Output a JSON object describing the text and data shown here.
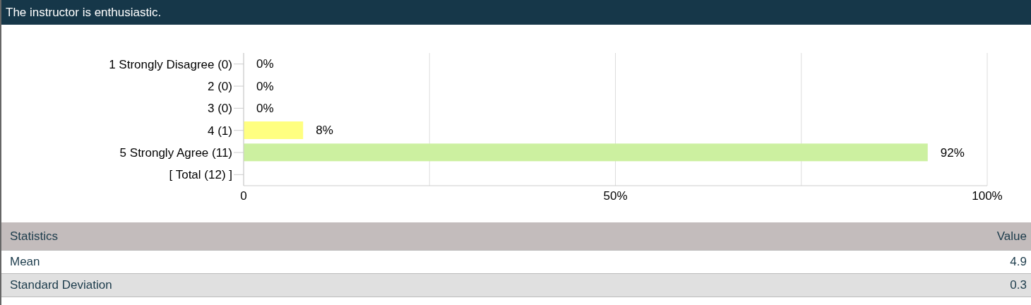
{
  "chart_data": {
    "type": "bar",
    "orientation": "horizontal",
    "title": "The instructor is enthusiastic.",
    "categories": [
      "1 Strongly Disagree (0)",
      "2 (0)",
      "3 (0)",
      "4 (1)",
      "5 Strongly Agree (11)",
      "[ Total (12) ]"
    ],
    "values": [
      0,
      0,
      0,
      8,
      92,
      null
    ],
    "colors": [
      "#ffff80",
      "#ffff80",
      "#ffff80",
      "#ffff80",
      "#ccf0a0",
      null
    ],
    "value_labels": [
      "0%",
      "0%",
      "0%",
      "8%",
      "92%",
      null
    ],
    "xlim": [
      0,
      100
    ],
    "xticks": [
      0,
      {
        "value": 25,
        "label": null
      },
      {
        "value": 50,
        "label": "50%"
      },
      {
        "value": 75,
        "label": null
      },
      {
        "value": 100,
        "label": "100%"
      }
    ],
    "grid": "x",
    "annotations": [
      "Statistics",
      "Value",
      "Mean",
      "4.9",
      "Standard Deviation",
      "0.3"
    ]
  }
}
